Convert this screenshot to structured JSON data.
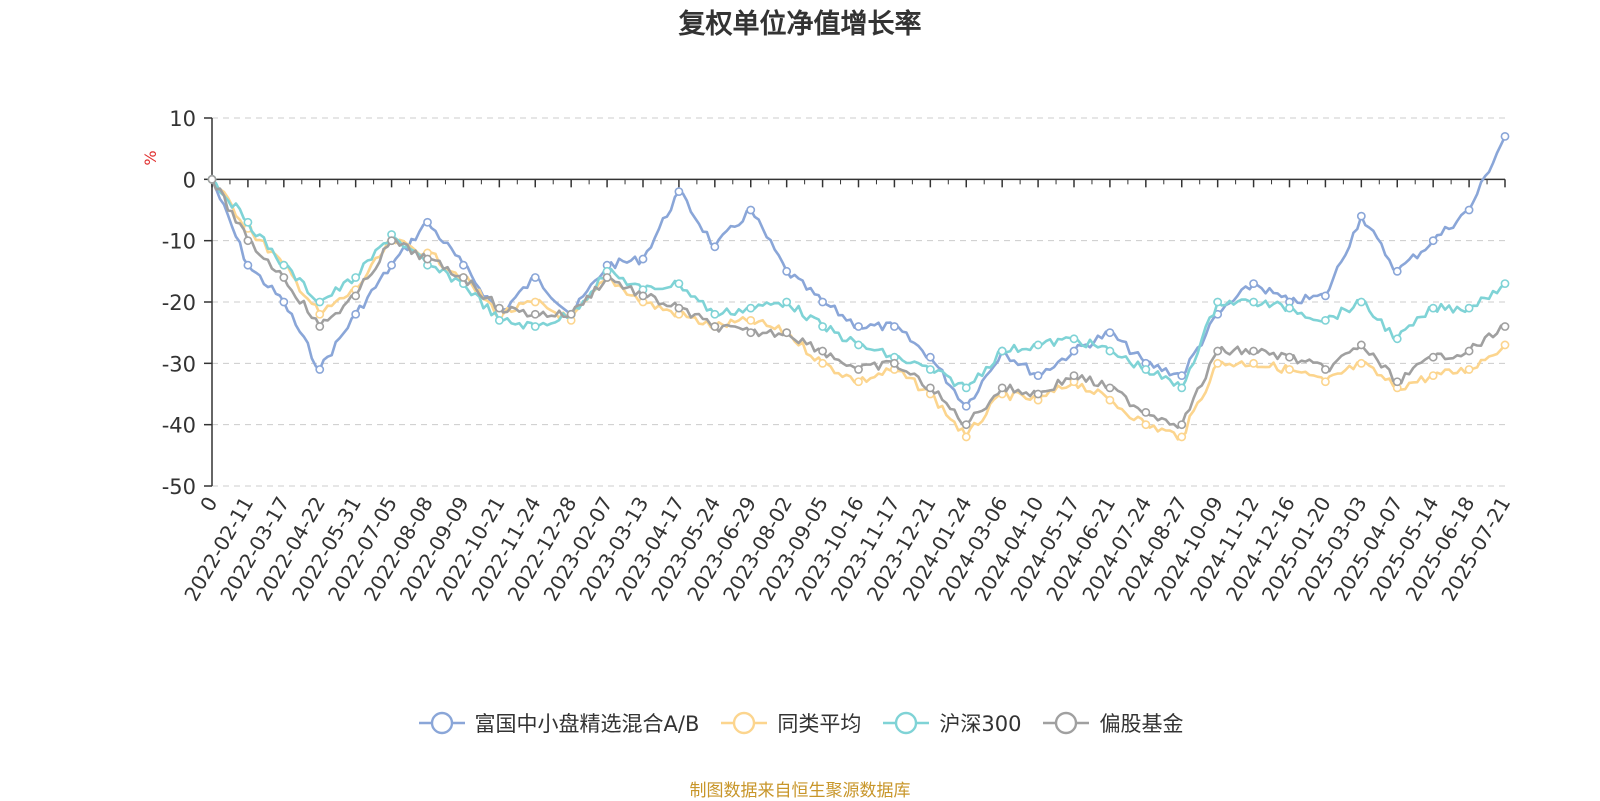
{
  "source_note": "制图数据来自恒生聚源数据库",
  "colors": {
    "fund": "#8aa6d8",
    "peer_avg": "#fcd58e",
    "hs300": "#7fd3d6",
    "equity_funds": "#a0a0a0"
  },
  "chart_data": {
    "type": "line",
    "title": "复权单位净值增长率",
    "ylabel": "%",
    "xlabel": "",
    "ylim": [
      -50,
      10
    ],
    "yticks": [
      10,
      0,
      -10,
      -20,
      -30,
      -40,
      -50
    ],
    "grid": true,
    "legend_position": "bottom",
    "x": [
      "0",
      "2022-02-11",
      "2022-03-17",
      "2022-04-22",
      "2022-05-31",
      "2022-07-05",
      "2022-08-08",
      "2022-09-09",
      "2022-10-21",
      "2022-11-24",
      "2022-12-28",
      "2023-02-07",
      "2023-03-13",
      "2023-04-17",
      "2023-05-24",
      "2023-06-29",
      "2023-08-02",
      "2023-09-05",
      "2023-10-16",
      "2023-11-17",
      "2023-12-21",
      "2024-01-24",
      "2024-03-06",
      "2024-04-10",
      "2024-05-17",
      "2024-06-21",
      "2024-07-24",
      "2024-08-27",
      "2024-10-09",
      "2024-11-12",
      "2024-12-16",
      "2025-01-20",
      "2025-03-03",
      "2025-04-07",
      "2025-05-14",
      "2025-06-18",
      "2025-07-21"
    ],
    "series": [
      {
        "name": "富国中小盘精选混合A/B",
        "color": "#8aa6d8",
        "values": [
          0,
          -14,
          -20,
          -31,
          -22,
          -14,
          -7,
          -14,
          -22,
          -16,
          -22,
          -14,
          -13,
          -2,
          -11,
          -5,
          -15,
          -20,
          -24,
          -24,
          -29,
          -37,
          -28,
          -32,
          -28,
          -25,
          -30,
          -32,
          -22,
          -17,
          -20,
          -19,
          -6,
          -15,
          -10,
          -5,
          7
        ]
      },
      {
        "name": "同类平均",
        "color": "#fcd58e",
        "values": [
          0,
          -8,
          -14,
          -22,
          -18,
          -10,
          -12,
          -16,
          -22,
          -20,
          -23,
          -16,
          -20,
          -22,
          -24,
          -23,
          -25,
          -30,
          -33,
          -31,
          -35,
          -42,
          -35,
          -36,
          -33,
          -36,
          -40,
          -42,
          -30,
          -30,
          -31,
          -33,
          -30,
          -34,
          -32,
          -31,
          -27
        ]
      },
      {
        "name": "沪深300",
        "color": "#7fd3d6",
        "values": [
          0,
          -7,
          -14,
          -20,
          -16,
          -9,
          -14,
          -17,
          -23,
          -24,
          -22,
          -15,
          -18,
          -17,
          -22,
          -21,
          -20,
          -24,
          -27,
          -29,
          -31,
          -34,
          -28,
          -27,
          -26,
          -28,
          -31,
          -34,
          -20,
          -20,
          -21,
          -23,
          -20,
          -26,
          -21,
          -21,
          -17
        ]
      },
      {
        "name": "偏股基金",
        "color": "#a0a0a0",
        "values": [
          0,
          -10,
          -16,
          -24,
          -19,
          -10,
          -13,
          -16,
          -21,
          -22,
          -22,
          -16,
          -19,
          -21,
          -24,
          -25,
          -25,
          -28,
          -31,
          -30,
          -34,
          -40,
          -34,
          -35,
          -32,
          -34,
          -38,
          -40,
          -28,
          -28,
          -29,
          -31,
          -27,
          -33,
          -29,
          -28,
          -24
        ]
      }
    ]
  }
}
